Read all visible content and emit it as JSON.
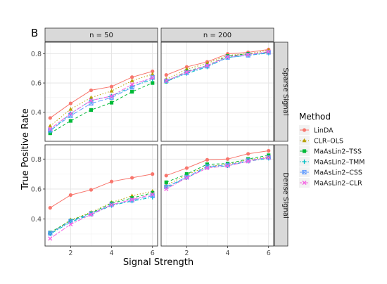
{
  "figure": {
    "panel_tag": "B",
    "xlabel": "Signal Strength",
    "ylabel": "True Positive Rate",
    "legend_title": "Method",
    "legend_position": "right",
    "grid": true
  },
  "methods": [
    {
      "name": "LinDA",
      "color": "#F8766D",
      "shape": "circle",
      "dash": "solid"
    },
    {
      "name": "CLR–OLS",
      "color": "#B79F00",
      "shape": "triangle",
      "dash": "dotted"
    },
    {
      "name": "MaAsLin2–TSS",
      "color": "#00BA38",
      "shape": "square",
      "dash": "dashed"
    },
    {
      "name": "MaAsLin2–TMM",
      "color": "#00BFC4",
      "shape": "plus",
      "dash": "dotdash"
    },
    {
      "name": "MaAsLin2–CSS",
      "color": "#619CFF",
      "shape": "boxx",
      "dash": "longdash"
    },
    {
      "name": "MaAsLin2–CLR",
      "color": "#F564E3",
      "shape": "x",
      "dash": "twodash"
    }
  ],
  "chart_data": {
    "type": "line",
    "title": "",
    "xlabel": "Signal Strength",
    "ylabel": "True Positive Rate",
    "x": [
      1,
      2,
      3,
      4,
      5,
      6
    ],
    "xlim": [
      0.75,
      6.25
    ],
    "xticks": [
      "2",
      "4",
      "6"
    ],
    "col_strips": [
      "n = 50",
      "n = 200"
    ],
    "row_strips": [
      "Sparse Signal",
      "Dense Signal"
    ],
    "rows": [
      {
        "ylim": [
          0.2,
          0.88
        ],
        "yticks": [
          "0.4",
          "0.6",
          "0.8"
        ]
      },
      {
        "ylim": [
          0.22,
          0.895
        ],
        "yticks": [
          "0.4",
          "0.6",
          "0.8"
        ]
      }
    ],
    "panels": [
      {
        "row": 0,
        "col": 0,
        "series": [
          {
            "name": "LinDA",
            "values": [
              0.36,
              0.46,
              0.55,
              0.575,
              0.64,
              0.68
            ]
          },
          {
            "name": "CLR–OLS",
            "values": [
              0.305,
              0.42,
              0.5,
              0.545,
              0.615,
              0.66
            ]
          },
          {
            "name": "MaAsLin2–TSS",
            "values": [
              0.255,
              0.34,
              0.415,
              0.465,
              0.54,
              0.6
            ]
          },
          {
            "name": "MaAsLin2–TMM",
            "values": [
              0.27,
              0.39,
              0.48,
              0.51,
              0.575,
              0.625
            ]
          },
          {
            "name": "MaAsLin2–CSS",
            "values": [
              0.275,
              0.375,
              0.46,
              0.5,
              0.57,
              0.64
            ]
          },
          {
            "name": "MaAsLin2–CLR",
            "values": [
              0.285,
              0.39,
              0.48,
              0.51,
              0.59,
              0.635
            ]
          }
        ]
      },
      {
        "row": 0,
        "col": 1,
        "series": [
          {
            "name": "LinDA",
            "values": [
              0.655,
              0.71,
              0.745,
              0.8,
              0.81,
              0.83
            ]
          },
          {
            "name": "CLR–OLS",
            "values": [
              0.625,
              0.695,
              0.735,
              0.79,
              0.8,
              0.825
            ]
          },
          {
            "name": "MaAsLin2–TSS",
            "values": [
              0.61,
              0.68,
              0.72,
              0.785,
              0.8,
              0.81
            ]
          },
          {
            "name": "MaAsLin2–TMM",
            "values": [
              0.61,
              0.665,
              0.71,
              0.775,
              0.79,
              0.805
            ]
          },
          {
            "name": "MaAsLin2–CSS",
            "values": [
              0.615,
              0.67,
              0.715,
              0.775,
              0.79,
              0.81
            ]
          },
          {
            "name": "MaAsLin2–CLR",
            "values": [
              0.615,
              0.675,
              0.72,
              0.78,
              0.795,
              0.815
            ]
          }
        ]
      },
      {
        "row": 1,
        "col": 0,
        "series": [
          {
            "name": "LinDA",
            "values": [
              0.475,
              0.56,
              0.595,
              0.65,
              0.675,
              0.7
            ]
          },
          {
            "name": "CLR–OLS",
            "values": [
              0.305,
              0.395,
              0.445,
              0.51,
              0.555,
              0.585
            ]
          },
          {
            "name": "MaAsLin2–TSS",
            "values": [
              0.31,
              0.39,
              0.44,
              0.505,
              0.54,
              0.575
            ]
          },
          {
            "name": "MaAsLin2–TMM",
            "values": [
              0.3,
              0.38,
              0.43,
              0.49,
              0.52,
              0.545
            ]
          },
          {
            "name": "MaAsLin2–CSS",
            "values": [
              0.305,
              0.385,
              0.435,
              0.495,
              0.525,
              0.555
            ]
          },
          {
            "name": "MaAsLin2–CLR",
            "values": [
              0.27,
              0.365,
              0.43,
              0.495,
              0.53,
              0.565
            ]
          }
        ]
      },
      {
        "row": 1,
        "col": 1,
        "series": [
          {
            "name": "LinDA",
            "values": [
              0.69,
              0.74,
              0.795,
              0.8,
              0.835,
              0.855
            ]
          },
          {
            "name": "CLR–OLS",
            "values": [
              0.625,
              0.695,
              0.75,
              0.765,
              0.795,
              0.815
            ]
          },
          {
            "name": "MaAsLin2–TSS",
            "values": [
              0.645,
              0.7,
              0.765,
              0.77,
              0.8,
              0.825
            ]
          },
          {
            "name": "MaAsLin2–TMM",
            "values": [
              0.61,
              0.675,
              0.745,
              0.755,
              0.785,
              0.805
            ]
          },
          {
            "name": "MaAsLin2–CSS",
            "values": [
              0.615,
              0.68,
              0.75,
              0.76,
              0.79,
              0.81
            ]
          },
          {
            "name": "MaAsLin2–CLR",
            "values": [
              0.6,
              0.675,
              0.74,
              0.755,
              0.785,
              0.81
            ]
          }
        ]
      }
    ]
  }
}
